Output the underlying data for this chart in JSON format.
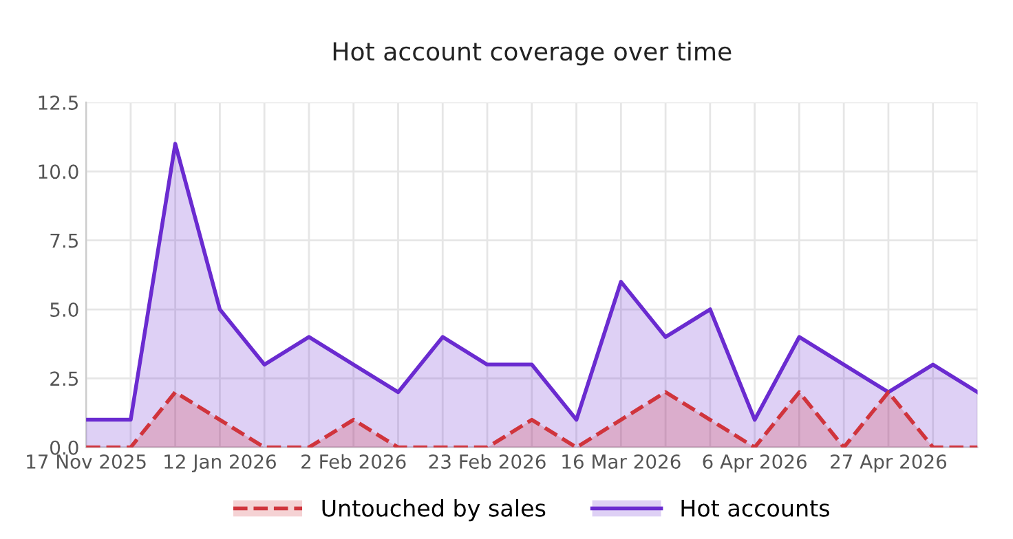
{
  "chart_data": {
    "type": "area",
    "title": "Hot account coverage over time",
    "categories": [
      "17 Nov 2025",
      null,
      null,
      "12 Jan 2026",
      null,
      null,
      "2 Feb 2026",
      null,
      null,
      "23 Feb 2026",
      null,
      null,
      "16 Mar 2026",
      null,
      null,
      "6 Apr 2026",
      null,
      null,
      "27 Apr 2026",
      null,
      null
    ],
    "series": [
      {
        "name": "Untouched by sales",
        "color": "#d0343c",
        "line_style": "dashed",
        "values": [
          0,
          0,
          2,
          1,
          0,
          0,
          1,
          0,
          0,
          0,
          1,
          0,
          1,
          2,
          1,
          0,
          2,
          0,
          2,
          0,
          0
        ]
      },
      {
        "name": "Hot accounts",
        "color": "#6a2bd0",
        "line_style": "solid",
        "values": [
          1,
          1,
          11,
          5,
          3,
          4,
          3,
          2,
          4,
          3,
          3,
          1,
          6,
          4,
          5,
          1,
          4,
          3,
          2,
          3,
          2
        ]
      }
    ],
    "ylim": [
      0,
      12.5
    ],
    "yticks": [
      {
        "value": 0,
        "label": "0.0"
      },
      {
        "value": 2.5,
        "label": "2.5"
      },
      {
        "value": 5,
        "label": "5.0"
      },
      {
        "value": 7.5,
        "label": "7.5"
      },
      {
        "value": 10,
        "label": "10.0"
      },
      {
        "value": 12.5,
        "label": "12.5"
      }
    ],
    "grid": true,
    "legend": "bottom"
  }
}
